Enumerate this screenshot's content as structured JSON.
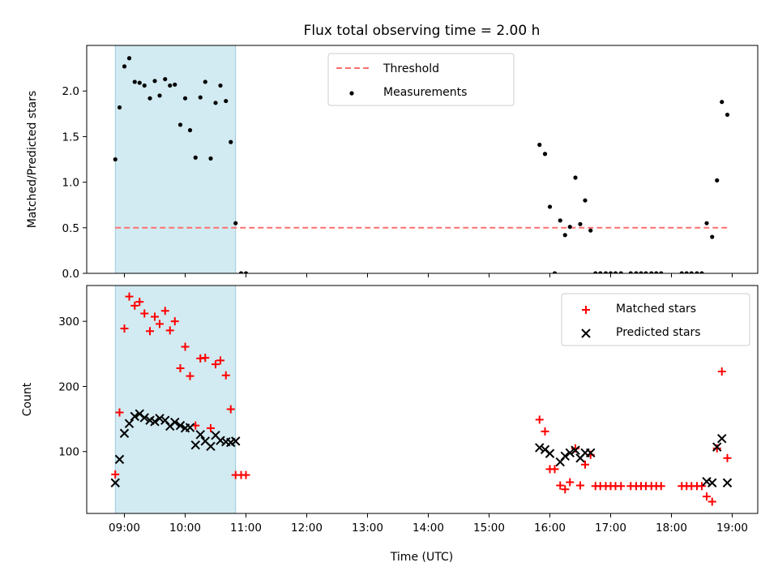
{
  "chart_data": {
    "type": "scatter",
    "title": "Flux total observing time = 2.00 h",
    "xlabel": "Time (UTC)",
    "x_unit": "hours UTC",
    "xlim": [
      8.38,
      19.42
    ],
    "x_ticks": [
      9,
      10,
      11,
      12,
      13,
      14,
      15,
      16,
      17,
      18,
      19
    ],
    "x_tick_labels": [
      "09:00",
      "10:00",
      "11:00",
      "12:00",
      "13:00",
      "14:00",
      "15:00",
      "16:00",
      "17:00",
      "18:00",
      "19:00"
    ],
    "observing_window": {
      "start": 8.85,
      "end": 10.83,
      "color": "#add8e6"
    },
    "panels": [
      {
        "ylabel": "Matched/Predicted stars",
        "ylim": [
          0,
          2.5
        ],
        "y_ticks": [
          0,
          0.5,
          1.0,
          1.5,
          2.0
        ],
        "y_tick_labels": [
          "0.0",
          "0.5",
          "1.0",
          "1.5",
          "2.0"
        ],
        "threshold": {
          "name": "Threshold",
          "y": 0.5,
          "x_from": 8.85,
          "x_to": 18.93,
          "color": "#ff7070"
        },
        "series": [
          {
            "name": "Measurements",
            "marker": "dot",
            "color": "#000000",
            "points": [
              [
                8.85,
                1.25
              ],
              [
                8.92,
                1.82
              ],
              [
                9.0,
                2.27
              ],
              [
                9.08,
                2.36
              ],
              [
                9.17,
                2.1
              ],
              [
                9.25,
                2.09
              ],
              [
                9.33,
                2.06
              ],
              [
                9.42,
                1.92
              ],
              [
                9.5,
                2.11
              ],
              [
                9.58,
                1.95
              ],
              [
                9.67,
                2.13
              ],
              [
                9.75,
                2.06
              ],
              [
                9.83,
                2.07
              ],
              [
                9.92,
                1.63
              ],
              [
                10.0,
                1.92
              ],
              [
                10.08,
                1.57
              ],
              [
                10.17,
                1.27
              ],
              [
                10.25,
                1.93
              ],
              [
                10.33,
                2.1
              ],
              [
                10.42,
                1.26
              ],
              [
                10.5,
                1.87
              ],
              [
                10.58,
                2.06
              ],
              [
                10.67,
                1.89
              ],
              [
                10.75,
                1.44
              ],
              [
                10.83,
                0.55
              ],
              [
                10.92,
                0.0
              ],
              [
                11.0,
                0.0
              ],
              [
                15.83,
                1.41
              ],
              [
                15.92,
                1.31
              ],
              [
                16.0,
                0.73
              ],
              [
                16.08,
                0.0
              ],
              [
                16.17,
                0.58
              ],
              [
                16.25,
                0.42
              ],
              [
                16.33,
                0.51
              ],
              [
                16.42,
                1.05
              ],
              [
                16.5,
                0.54
              ],
              [
                16.58,
                0.8
              ],
              [
                16.67,
                0.47
              ],
              [
                16.75,
                0.0
              ],
              [
                16.83,
                0.0
              ],
              [
                16.92,
                0.0
              ],
              [
                17.0,
                0.0
              ],
              [
                17.08,
                0.0
              ],
              [
                17.17,
                0.0
              ],
              [
                17.33,
                0.0
              ],
              [
                17.42,
                0.0
              ],
              [
                17.5,
                0.0
              ],
              [
                17.58,
                0.0
              ],
              [
                17.67,
                0.0
              ],
              [
                17.75,
                0.0
              ],
              [
                17.83,
                0.0
              ],
              [
                18.17,
                0.0
              ],
              [
                18.25,
                0.0
              ],
              [
                18.33,
                0.0
              ],
              [
                18.42,
                0.0
              ],
              [
                18.5,
                0.0
              ],
              [
                18.58,
                0.55
              ],
              [
                18.67,
                0.4
              ],
              [
                18.75,
                1.02
              ],
              [
                18.83,
                1.88
              ],
              [
                18.92,
                1.74
              ]
            ]
          }
        ],
        "legend_position": "top-center",
        "legend_entries": [
          "Threshold",
          "Measurements"
        ]
      },
      {
        "ylabel": "Count",
        "ylim": [
          5,
          355
        ],
        "y_ticks": [
          100,
          200,
          300
        ],
        "y_tick_labels": [
          "100",
          "200",
          "300"
        ],
        "series": [
          {
            "name": "Matched stars",
            "marker": "plus",
            "color": "#ff0000",
            "points": [
              [
                8.85,
                65
              ],
              [
                8.92,
                160
              ],
              [
                9.0,
                289
              ],
              [
                9.08,
                338
              ],
              [
                9.17,
                324
              ],
              [
                9.25,
                330
              ],
              [
                9.33,
                312
              ],
              [
                9.42,
                285
              ],
              [
                9.5,
                307
              ],
              [
                9.58,
                296
              ],
              [
                9.67,
                316
              ],
              [
                9.75,
                286
              ],
              [
                9.83,
                300
              ],
              [
                9.92,
                228
              ],
              [
                10.0,
                261
              ],
              [
                10.08,
                216
              ],
              [
                10.17,
                140
              ],
              [
                10.25,
                243
              ],
              [
                10.33,
                244
              ],
              [
                10.42,
                136
              ],
              [
                10.5,
                234
              ],
              [
                10.58,
                240
              ],
              [
                10.67,
                217
              ],
              [
                10.75,
                165
              ],
              [
                10.83,
                64
              ],
              [
                10.92,
                64
              ],
              [
                11.0,
                64
              ],
              [
                15.83,
                149
              ],
              [
                15.92,
                131
              ],
              [
                16.0,
                73
              ],
              [
                16.08,
                73
              ],
              [
                16.17,
                48
              ],
              [
                16.25,
                42
              ],
              [
                16.33,
                53
              ],
              [
                16.42,
                105
              ],
              [
                16.5,
                48
              ],
              [
                16.58,
                80
              ],
              [
                16.67,
                95
              ],
              [
                16.75,
                47
              ],
              [
                16.83,
                47
              ],
              [
                16.92,
                47
              ],
              [
                17.0,
                47
              ],
              [
                17.08,
                47
              ],
              [
                17.17,
                47
              ],
              [
                17.33,
                47
              ],
              [
                17.42,
                47
              ],
              [
                17.5,
                47
              ],
              [
                17.58,
                47
              ],
              [
                17.67,
                47
              ],
              [
                17.75,
                47
              ],
              [
                17.83,
                47
              ],
              [
                18.17,
                47
              ],
              [
                18.25,
                47
              ],
              [
                18.33,
                47
              ],
              [
                18.42,
                47
              ],
              [
                18.5,
                47
              ],
              [
                18.58,
                31
              ],
              [
                18.67,
                23
              ],
              [
                18.75,
                105
              ],
              [
                18.83,
                223
              ],
              [
                18.92,
                90
              ]
            ]
          },
          {
            "name": "Predicted stars",
            "marker": "x",
            "color": "#000000",
            "points": [
              [
                8.85,
                52
              ],
              [
                8.92,
                88
              ],
              [
                9.0,
                128
              ],
              [
                9.08,
                143
              ],
              [
                9.17,
                154
              ],
              [
                9.25,
                158
              ],
              [
                9.33,
                152
              ],
              [
                9.42,
                148
              ],
              [
                9.5,
                146
              ],
              [
                9.58,
                151
              ],
              [
                9.67,
                148
              ],
              [
                9.75,
                139
              ],
              [
                9.83,
                145
              ],
              [
                9.92,
                140
              ],
              [
                10.0,
                136
              ],
              [
                10.08,
                137
              ],
              [
                10.17,
                110
              ],
              [
                10.25,
                126
              ],
              [
                10.33,
                116
              ],
              [
                10.42,
                108
              ],
              [
                10.5,
                125
              ],
              [
                10.58,
                117
              ],
              [
                10.67,
                115
              ],
              [
                10.75,
                114
              ],
              [
                10.83,
                116
              ],
              [
                15.83,
                106
              ],
              [
                15.92,
                103
              ],
              [
                16.0,
                97
              ],
              [
                16.17,
                84
              ],
              [
                16.25,
                93
              ],
              [
                16.33,
                98
              ],
              [
                16.42,
                102
              ],
              [
                16.5,
                90
              ],
              [
                16.58,
                98
              ],
              [
                16.67,
                98
              ],
              [
                18.58,
                54
              ],
              [
                18.67,
                52
              ],
              [
                18.75,
                107
              ],
              [
                18.83,
                120
              ],
              [
                18.92,
                52
              ]
            ]
          }
        ],
        "legend_position": "top-right",
        "legend_entries": [
          "Matched stars",
          "Predicted stars"
        ]
      }
    ]
  }
}
